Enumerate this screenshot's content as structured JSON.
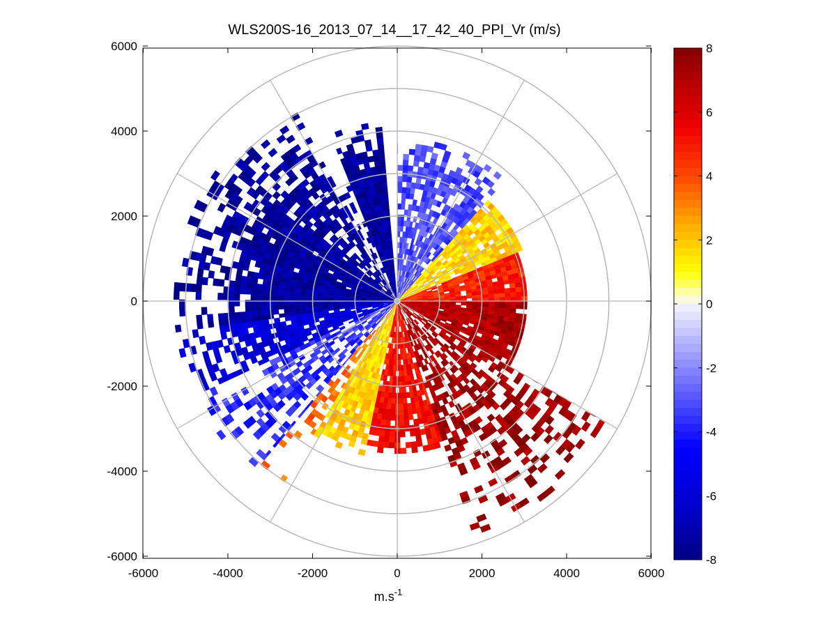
{
  "chart_data": {
    "type": "heatmap",
    "subtype": "polar-ppi",
    "title": "WLS200S-16_2013_07_14__17_42_40_PPI_Vr (m/s)",
    "xlabel": "m.s",
    "xlabel_superscript": "-1",
    "ylabel": "",
    "xlim": [
      -6000,
      6000
    ],
    "ylim": [
      -6000,
      6000
    ],
    "x_ticks": [
      "-6000",
      "-4000",
      "-2000",
      "0",
      "2000",
      "4000",
      "6000"
    ],
    "y_ticks": [
      "6000",
      "4000",
      "2000",
      "0",
      "-2000",
      "-4000",
      "-6000"
    ],
    "range_rings_m": [
      1000,
      2000,
      3000,
      4000,
      5000,
      6000
    ],
    "radial_spokes_deg": [
      0,
      30,
      60,
      90,
      120,
      150,
      180,
      210,
      240,
      270,
      300,
      330
    ],
    "colorbar": {
      "min": -8,
      "max": 8,
      "ticks": [
        "8",
        "6",
        "4",
        "2",
        "0",
        "-2",
        "-4",
        "-6",
        "-8"
      ],
      "colormap": "blue-white-yellow-red"
    },
    "sectors": [
      {
        "from_deg": 95,
        "to_deg": 112,
        "max_range": 4200,
        "value": -7.2,
        "fill": 1.0
      },
      {
        "from_deg": 112,
        "to_deg": 118,
        "max_range": 3200,
        "value": -7.0,
        "fill": 0.3
      },
      {
        "from_deg": 118,
        "to_deg": 140,
        "max_range": 5100,
        "value": -7.2,
        "fill": 0.7
      },
      {
        "from_deg": 140,
        "to_deg": 188,
        "max_range": 5200,
        "value": -7.3,
        "fill": 0.97
      },
      {
        "from_deg": 188,
        "to_deg": 205,
        "max_range": 5200,
        "value": -5.8,
        "fill": 0.85
      },
      {
        "from_deg": 205,
        "to_deg": 230,
        "max_range": 5200,
        "value": -3.5,
        "fill": 0.6
      },
      {
        "from_deg": 230,
        "to_deg": 238,
        "max_range": 5000,
        "value": 3.0,
        "fill": 0.4
      },
      {
        "from_deg": 238,
        "to_deg": 258,
        "max_range": 3600,
        "value": 1.5,
        "fill": 0.95
      },
      {
        "from_deg": 258,
        "to_deg": 288,
        "max_range": 3500,
        "value": 5.0,
        "fill": 0.9
      },
      {
        "from_deg": 288,
        "to_deg": 330,
        "max_range": 5700,
        "value": 7.0,
        "fill": 0.6
      },
      {
        "from_deg": 330,
        "to_deg": 360,
        "max_range": 3000,
        "value": 6.8,
        "fill": 0.95
      },
      {
        "from_deg": 0,
        "to_deg": 22,
        "max_range": 3000,
        "value": 4.5,
        "fill": 0.95
      },
      {
        "from_deg": 22,
        "to_deg": 48,
        "max_range": 3200,
        "value": 1.5,
        "fill": 0.9
      },
      {
        "from_deg": 48,
        "to_deg": 90,
        "max_range": 3800,
        "value": -3.0,
        "fill": 0.75
      }
    ]
  }
}
